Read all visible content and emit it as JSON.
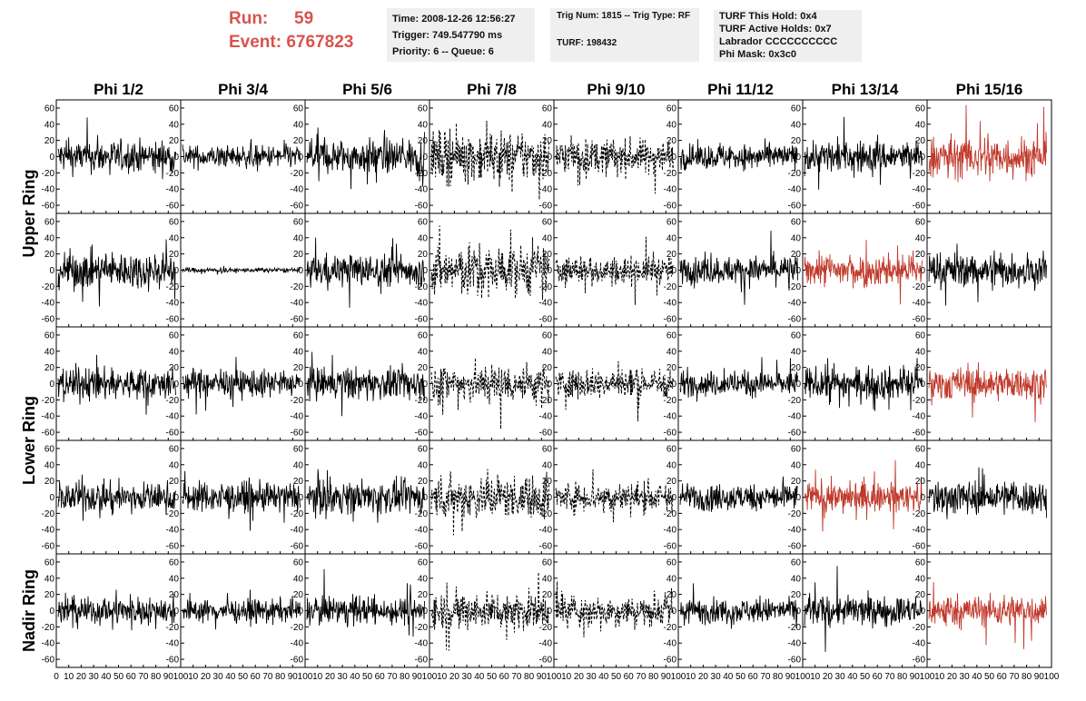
{
  "header": {
    "run_label": "Run:",
    "run_value": "59",
    "event_label": "Event:",
    "event_value": "6767823",
    "info_time": {
      "time": "Time: 2008-12-26 12:56:27",
      "trigger": "Trigger: 749.547790 ms",
      "priority": "Priority: 6 -- Queue: 6"
    },
    "info_trig": {
      "trig": "Trig Num: 1815 -- Trig Type: RF",
      "turf": "TURF: 198432"
    },
    "info_turf": {
      "this_hold": "TURF This Hold: 0x4",
      "active_holds": "TURF Active Holds: 0x7",
      "labrador": "Labrador CCCCCCCCCC",
      "phi_mask": "Phi Mask: 0x3c0"
    }
  },
  "chart_data": {
    "type": "line",
    "columns": [
      "Phi 1/2",
      "Phi 3/4",
      "Phi 5/6",
      "Phi 7/8",
      "Phi 9/10",
      "Phi 11/12",
      "Phi 13/14",
      "Phi 15/16"
    ],
    "rows": [
      "Upper Ring",
      "Upper Ring",
      "Lower Ring",
      "Lower Ring",
      "Nadir Ring"
    ],
    "row_labels": [
      "Upper Ring",
      "Lower Ring",
      "Nadir Ring"
    ],
    "xlim": [
      0,
      100
    ],
    "ylim": [
      -70,
      70
    ],
    "x_ticks": [
      0,
      10,
      20,
      30,
      40,
      50,
      60,
      70,
      80,
      90,
      100
    ],
    "x_tick_labels_row": [
      "0",
      "10",
      "20",
      "30",
      "40",
      "50",
      "60",
      "70",
      "80",
      "90",
      "100"
    ],
    "y_ticks": [
      -60,
      -40,
      -20,
      0,
      20,
      40,
      60
    ],
    "y_tick_labels": [
      "-60",
      "-40",
      "-20",
      "0",
      "20",
      "40",
      "60"
    ],
    "colors": {
      "normal": "#000000",
      "triggered": "#c0392b"
    },
    "panels": [
      [
        {
          "amp": 13,
          "style": "solid"
        },
        {
          "amp": 9,
          "style": "solid"
        },
        {
          "amp": 14,
          "style": "solid"
        },
        {
          "amp": 20,
          "style": "dashed"
        },
        {
          "amp": 14,
          "style": "dashed"
        },
        {
          "amp": 10,
          "style": "solid"
        },
        {
          "amp": 13,
          "style": "solid"
        },
        {
          "amp": 17,
          "style": "red"
        }
      ],
      [
        {
          "amp": 15,
          "style": "solid"
        },
        {
          "amp": 2,
          "style": "solid"
        },
        {
          "amp": 13,
          "style": "solid"
        },
        {
          "amp": 20,
          "style": "dashed"
        },
        {
          "amp": 11,
          "style": "dashed"
        },
        {
          "amp": 11,
          "style": "solid"
        },
        {
          "amp": 13,
          "style": "red"
        },
        {
          "amp": 14,
          "style": "solid"
        }
      ],
      [
        {
          "amp": 13,
          "style": "solid"
        },
        {
          "amp": 11,
          "style": "solid"
        },
        {
          "amp": 13,
          "style": "solid"
        },
        {
          "amp": 16,
          "style": "dashed"
        },
        {
          "amp": 12,
          "style": "dashed"
        },
        {
          "amp": 10,
          "style": "solid"
        },
        {
          "amp": 13,
          "style": "solid"
        },
        {
          "amp": 13,
          "style": "red"
        }
      ],
      [
        {
          "amp": 12,
          "style": "solid"
        },
        {
          "amp": 12,
          "style": "solid"
        },
        {
          "amp": 13,
          "style": "solid"
        },
        {
          "amp": 17,
          "style": "dashed"
        },
        {
          "amp": 12,
          "style": "dashed"
        },
        {
          "amp": 11,
          "style": "solid"
        },
        {
          "amp": 12,
          "style": "red"
        },
        {
          "amp": 14,
          "style": "solid"
        }
      ],
      [
        {
          "amp": 11,
          "style": "solid"
        },
        {
          "amp": 9,
          "style": "solid"
        },
        {
          "amp": 11,
          "style": "solid"
        },
        {
          "amp": 15,
          "style": "dashed"
        },
        {
          "amp": 12,
          "style": "dashed"
        },
        {
          "amp": 10,
          "style": "solid"
        },
        {
          "amp": 12,
          "style": "solid"
        },
        {
          "amp": 13,
          "style": "red"
        }
      ]
    ]
  }
}
